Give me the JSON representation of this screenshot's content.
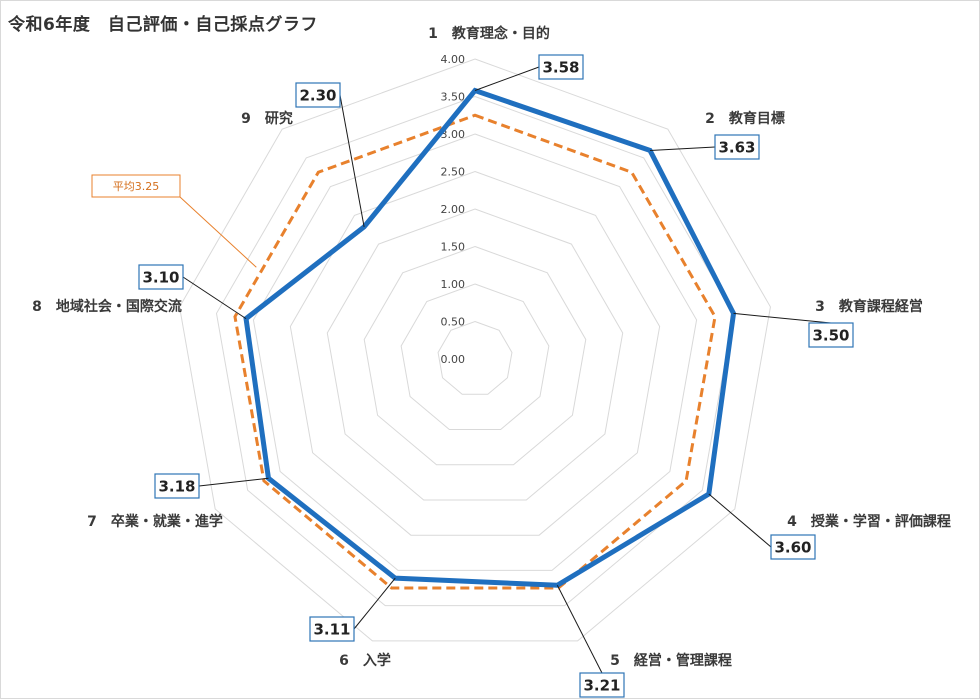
{
  "title": "令和6年度　自己評価・自己採点グラフ",
  "chart_data": {
    "type": "radar",
    "title": "令和6年度　自己評価・自己採点グラフ",
    "categories": [
      "1　教育理念・目的",
      "2　教育目標",
      "3　教育課程経営",
      "4　授業・学習・評価課程",
      "5　経営・管理課程",
      "6　入学",
      "7　卒業・就業・進学",
      "8　地域社会・国際交流",
      "9　研究"
    ],
    "rlim": [
      0,
      4
    ],
    "ticks": [
      "0.00",
      "0.50",
      "1.00",
      "1.50",
      "2.00",
      "2.50",
      "3.00",
      "3.50",
      "4.00"
    ],
    "series": [
      {
        "values": [
          3.58,
          3.63,
          3.5,
          3.6,
          3.21,
          3.11,
          3.18,
          3.1,
          2.3
        ],
        "color": "#1f6fbf",
        "style": "solid"
      },
      {
        "values": [
          3.25,
          3.25,
          3.25,
          3.25,
          3.25,
          3.25,
          3.25,
          3.25,
          3.25
        ],
        "color": "#e8812d",
        "style": "dashed"
      }
    ],
    "data_labels": [
      "3.58",
      "3.63",
      "3.50",
      "3.60",
      "3.21",
      "3.11",
      "3.18",
      "3.10",
      "2.30"
    ],
    "annotation": "平均3.25",
    "grid": true
  }
}
